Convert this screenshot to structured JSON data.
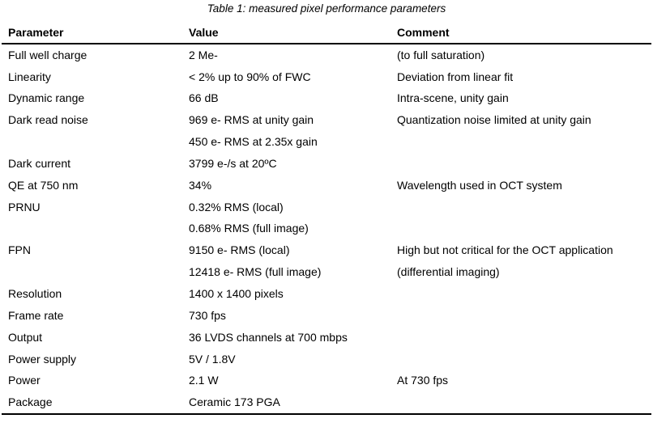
{
  "caption": "Table 1: measured pixel performance parameters",
  "columns": [
    "Parameter",
    "Value",
    "Comment"
  ],
  "rows": [
    {
      "parameter": "Full well charge",
      "value": "2 Me-",
      "comment": "(to full saturation)"
    },
    {
      "parameter": "Linearity",
      "value": "< 2% up to 90% of FWC",
      "comment": "Deviation from linear fit"
    },
    {
      "parameter": "Dynamic range",
      "value": "66 dB",
      "comment": "Intra-scene, unity gain"
    },
    {
      "parameter": "Dark read noise",
      "value": "969 e- RMS at unity gain",
      "comment": "Quantization noise limited at unity gain"
    },
    {
      "parameter": "",
      "value": "450 e- RMS at 2.35x gain",
      "comment": ""
    },
    {
      "parameter": "Dark current",
      "value": "3799 e-/s at 20ºC",
      "comment": ""
    },
    {
      "parameter": "QE at 750 nm",
      "value": "34%",
      "comment": "Wavelength used in OCT system"
    },
    {
      "parameter": "PRNU",
      "value": "0.32% RMS (local)",
      "comment": ""
    },
    {
      "parameter": "",
      "value": "0.68% RMS (full image)",
      "comment": ""
    },
    {
      "parameter": "FPN",
      "value": "9150 e- RMS (local)",
      "comment": "High but not critical for the OCT application"
    },
    {
      "parameter": "",
      "value": "12418 e- RMS (full image)",
      "comment": "(differential imaging)"
    },
    {
      "parameter": "Resolution",
      "value": "1400 x 1400 pixels",
      "comment": ""
    },
    {
      "parameter": "Frame rate",
      "value": "730 fps",
      "comment": ""
    },
    {
      "parameter": "Output",
      "value": "36 LVDS channels at 700 mbps",
      "comment": ""
    },
    {
      "parameter": "Power supply",
      "value": "5V / 1.8V",
      "comment": ""
    },
    {
      "parameter": "Power",
      "value": "2.1 W",
      "comment": "At 730 fps"
    },
    {
      "parameter": "Package",
      "value": "Ceramic 173 PGA",
      "comment": ""
    }
  ],
  "colors": {
    "text": "#000000",
    "rule": "#000000",
    "background": "#ffffff"
  }
}
